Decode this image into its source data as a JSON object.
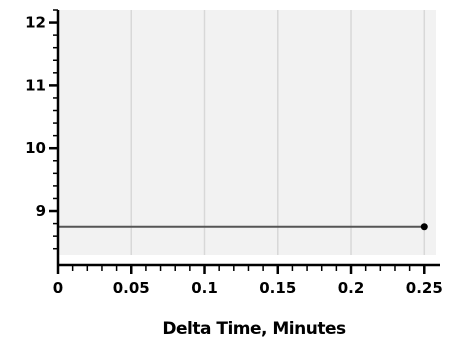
{
  "chart_data": {
    "type": "line",
    "title": "",
    "xlabel": "Delta Time, Minutes",
    "ylabel": "",
    "xlim": [
      0,
      0.258
    ],
    "ylim": [
      8.3,
      12.2
    ],
    "x_ticks": [
      0,
      0.05,
      0.1,
      0.15,
      0.2,
      0.25
    ],
    "x_tick_labels": [
      "0",
      "0.05",
      "0.1",
      "0.15",
      "0.2",
      "0.25"
    ],
    "y_ticks": [
      9,
      10,
      11,
      12
    ],
    "y_tick_labels": [
      "9",
      "10",
      "11",
      "12"
    ],
    "grid": "vertical",
    "legend": "none",
    "series": [
      {
        "x": [
          0,
          0.25
        ],
        "y": [
          8.75,
          8.75
        ],
        "marker_at_end": true
      }
    ],
    "colors": {
      "plot_bg": "#f2f2f2",
      "grid": "#d8d8d8",
      "line": "#555555",
      "axis": "#000000"
    }
  }
}
